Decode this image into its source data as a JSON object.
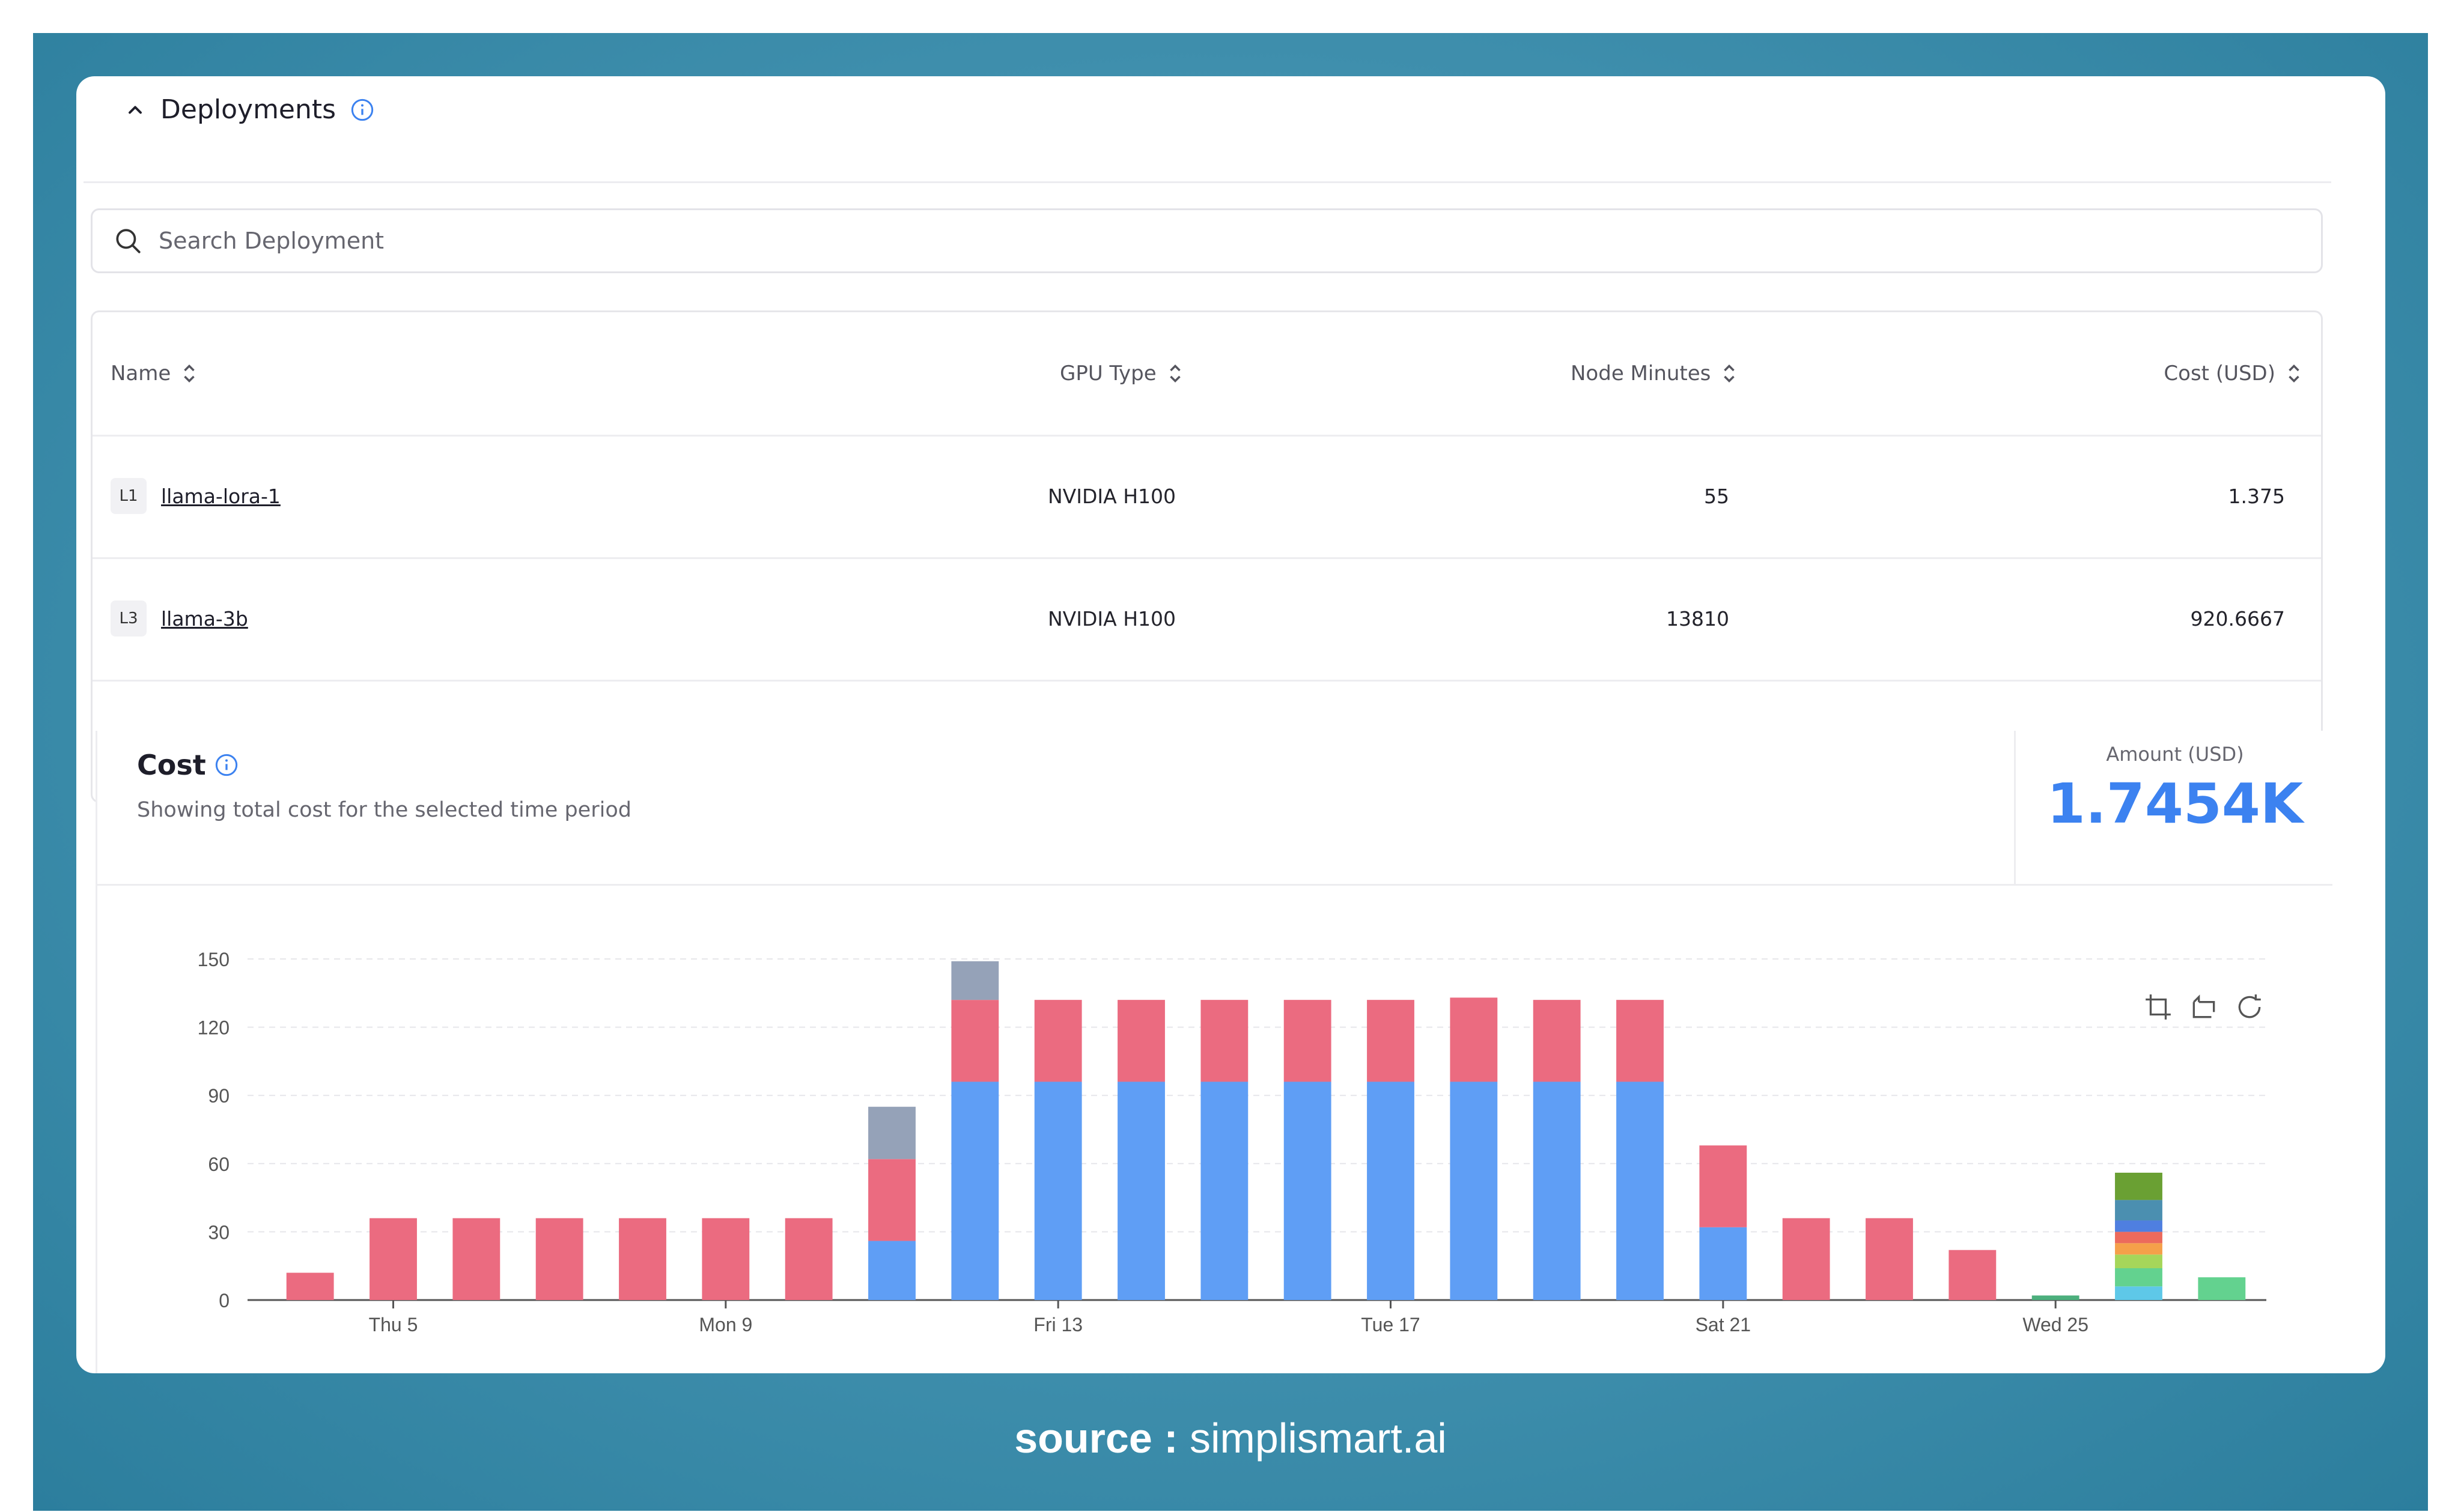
{
  "section": {
    "title": "Deployments"
  },
  "search": {
    "placeholder": "Search Deployment"
  },
  "table": {
    "headers": {
      "name": "Name",
      "gpu": "GPU Type",
      "minutes": "Node Minutes",
      "cost": "Cost (USD)"
    },
    "rows": [
      {
        "badge": "L1",
        "name": "llama-lora-1",
        "gpu": "NVIDIA H100",
        "minutes": "55",
        "cost": "1.375"
      },
      {
        "badge": "L3",
        "name": "llama-3b",
        "gpu": "NVIDIA H100",
        "minutes": "13810",
        "cost": "920.6667"
      }
    ]
  },
  "cost": {
    "title": "Cost",
    "subtitle": "Showing total cost for the selected time period",
    "amount_label": "Amount (USD)",
    "amount_value": "1.7454K"
  },
  "colors": {
    "red": "#eb6b80",
    "blue": "#5f9ef5",
    "gray": "#95a2b8",
    "accent": "#3c82f0"
  },
  "chart_data": {
    "type": "bar",
    "stacked": true,
    "ylim": [
      0,
      150
    ],
    "yticks": [
      0,
      30,
      60,
      90,
      120,
      150
    ],
    "xtick_labels": [
      {
        "index": 1,
        "label": "Thu 5"
      },
      {
        "index": 5,
        "label": "Mon 9"
      },
      {
        "index": 9,
        "label": "Fri 13"
      },
      {
        "index": 13,
        "label": "Tue 17"
      },
      {
        "index": 17,
        "label": "Sat 21"
      },
      {
        "index": 21,
        "label": "Wed 25"
      }
    ],
    "stacks": [
      [
        {
          "v": 12,
          "c": "#eb6b80"
        }
      ],
      [
        {
          "v": 36,
          "c": "#eb6b80"
        }
      ],
      [
        {
          "v": 36,
          "c": "#eb6b80"
        }
      ],
      [
        {
          "v": 36,
          "c": "#eb6b80"
        }
      ],
      [
        {
          "v": 36,
          "c": "#eb6b80"
        }
      ],
      [
        {
          "v": 36,
          "c": "#eb6b80"
        }
      ],
      [
        {
          "v": 36,
          "c": "#eb6b80"
        }
      ],
      [
        {
          "v": 26,
          "c": "#5f9ef5"
        },
        {
          "v": 36,
          "c": "#eb6b80"
        },
        {
          "v": 23,
          "c": "#95a2b8"
        }
      ],
      [
        {
          "v": 96,
          "c": "#5f9ef5"
        },
        {
          "v": 36,
          "c": "#eb6b80"
        },
        {
          "v": 17,
          "c": "#95a2b8"
        }
      ],
      [
        {
          "v": 96,
          "c": "#5f9ef5"
        },
        {
          "v": 36,
          "c": "#eb6b80"
        }
      ],
      [
        {
          "v": 96,
          "c": "#5f9ef5"
        },
        {
          "v": 36,
          "c": "#eb6b80"
        }
      ],
      [
        {
          "v": 96,
          "c": "#5f9ef5"
        },
        {
          "v": 36,
          "c": "#eb6b80"
        }
      ],
      [
        {
          "v": 96,
          "c": "#5f9ef5"
        },
        {
          "v": 36,
          "c": "#eb6b80"
        }
      ],
      [
        {
          "v": 96,
          "c": "#5f9ef5"
        },
        {
          "v": 36,
          "c": "#eb6b80"
        }
      ],
      [
        {
          "v": 96,
          "c": "#5f9ef5"
        },
        {
          "v": 37,
          "c": "#eb6b80"
        }
      ],
      [
        {
          "v": 96,
          "c": "#5f9ef5"
        },
        {
          "v": 36,
          "c": "#eb6b80"
        }
      ],
      [
        {
          "v": 96,
          "c": "#5f9ef5"
        },
        {
          "v": 36,
          "c": "#eb6b80"
        }
      ],
      [
        {
          "v": 32,
          "c": "#5f9ef5"
        },
        {
          "v": 36,
          "c": "#eb6b80"
        }
      ],
      [
        {
          "v": 36,
          "c": "#eb6b80"
        }
      ],
      [
        {
          "v": 36,
          "c": "#eb6b80"
        }
      ],
      [
        {
          "v": 22,
          "c": "#eb6b80"
        }
      ],
      [
        {
          "v": 2,
          "c": "#4caf7d"
        }
      ],
      [
        {
          "v": 6,
          "c": "#5ec8e8"
        },
        {
          "v": 8,
          "c": "#63d28f"
        },
        {
          "v": 6,
          "c": "#a6d65a"
        },
        {
          "v": 5,
          "c": "#f5a04a"
        },
        {
          "v": 5,
          "c": "#ec6a5c"
        },
        {
          "v": 5,
          "c": "#4f7fe0"
        },
        {
          "v": 9,
          "c": "#4b8fb0"
        },
        {
          "v": 12,
          "c": "#6aa033"
        }
      ],
      [
        {
          "v": 10,
          "c": "#63d28f"
        }
      ]
    ]
  },
  "source": {
    "label": "source :",
    "value": "simplismart.ai"
  }
}
